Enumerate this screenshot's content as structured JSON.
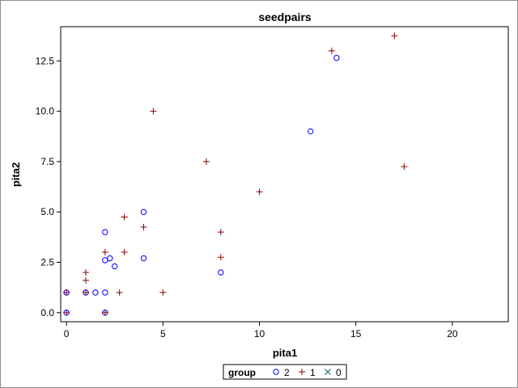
{
  "chart_data": {
    "type": "scatter",
    "title": "seedpairs",
    "xlabel": "pita1",
    "ylabel": "pita2",
    "xlim": [
      -0.3,
      22.9
    ],
    "ylim": [
      -0.45,
      14.2
    ],
    "xticks": [
      0,
      5,
      10,
      15,
      20
    ],
    "xtick_labels": [
      "0",
      "5",
      "10",
      "15",
      "20"
    ],
    "yticks": [
      0.0,
      2.5,
      5.0,
      7.5,
      10.0,
      12.5
    ],
    "ytick_labels": [
      "0.0",
      "2.5",
      "5.0",
      "7.5",
      "10.0",
      "12.5"
    ],
    "grid": false,
    "legend": {
      "placement": "bottom",
      "title": "group",
      "entries": [
        {
          "label": "2",
          "marker": "circle",
          "color": "#0000ff"
        },
        {
          "label": "1",
          "marker": "plus",
          "color": "#8b0000"
        },
        {
          "label": "0",
          "marker": "x",
          "color": "#006060"
        }
      ]
    },
    "series": [
      {
        "name": "2",
        "marker": "circle",
        "color": "#0000ff",
        "points": [
          [
            0,
            0
          ],
          [
            0,
            1
          ],
          [
            1,
            1
          ],
          [
            1.5,
            1
          ],
          [
            2,
            1
          ],
          [
            2,
            0
          ],
          [
            2,
            2.6
          ],
          [
            2.25,
            2.7
          ],
          [
            2.5,
            2.3
          ],
          [
            2,
            4
          ],
          [
            4,
            5
          ],
          [
            4,
            2.7
          ],
          [
            8,
            2
          ],
          [
            12.65,
            9
          ],
          [
            14,
            12.65
          ]
        ]
      },
      {
        "name": "1",
        "marker": "plus",
        "color": "#8b0000",
        "points": [
          [
            0,
            0
          ],
          [
            0,
            1
          ],
          [
            1,
            1
          ],
          [
            1,
            1.6
          ],
          [
            1,
            2
          ],
          [
            2,
            0
          ],
          [
            2,
            3
          ],
          [
            2.75,
            1
          ],
          [
            3,
            3
          ],
          [
            3,
            4.75
          ],
          [
            4,
            4.25
          ],
          [
            4.5,
            10
          ],
          [
            5,
            1
          ],
          [
            7.25,
            7.5
          ],
          [
            8,
            4
          ],
          [
            8,
            2.75
          ],
          [
            10,
            6
          ],
          [
            13.75,
            13
          ],
          [
            17,
            13.75
          ],
          [
            17.5,
            7.25
          ]
        ]
      },
      {
        "name": "0",
        "marker": "x",
        "color": "#006060",
        "points": []
      }
    ]
  }
}
